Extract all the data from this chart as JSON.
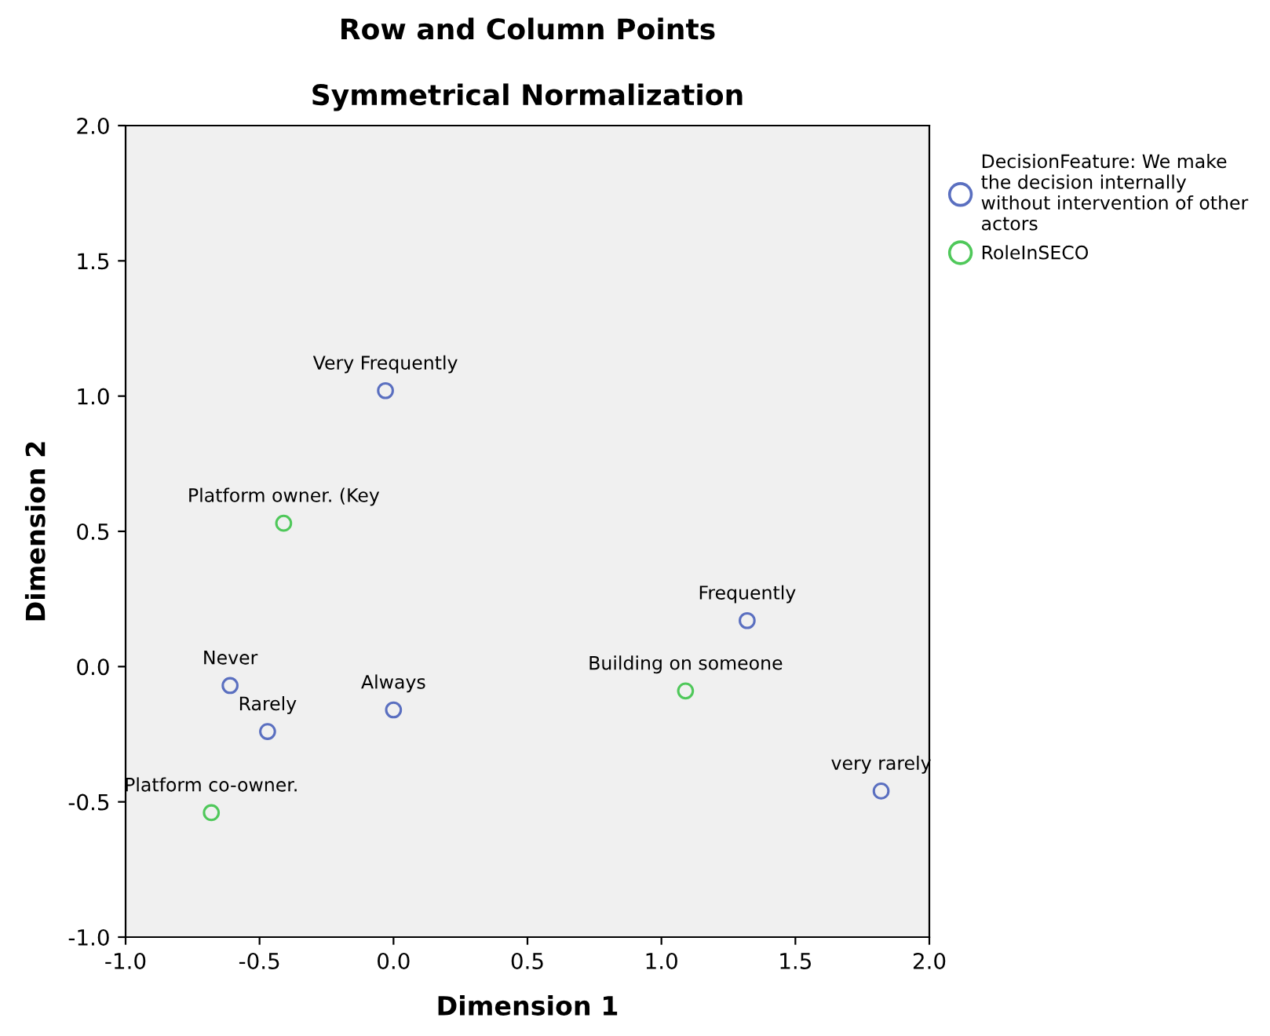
{
  "chart_data": {
    "type": "scatter",
    "title": "Row and Column Points",
    "subtitle": "Symmetrical Normalization",
    "xlabel": "Dimension 1",
    "ylabel": "Dimension 2",
    "series": [
      {
        "name": "DecisionFeature: We make\nthe decision internally\nwithout intervention of other\nactors",
        "color": "#5a6fc0",
        "x": [
          -0.03,
          1.32,
          -0.61,
          0.0,
          -0.47,
          1.82
        ],
        "values": [
          1.02,
          0.17,
          -0.07,
          -0.16,
          -0.24,
          -0.46
        ]
      },
      {
        "name": "RoleInSECO",
        "color": "#4fc85a",
        "x": [
          -0.41,
          1.09,
          -0.68
        ],
        "values": [
          0.53,
          -0.09,
          -0.54
        ]
      }
    ],
    "annotations": [
      {
        "text": "Very Frequently",
        "x": -0.03,
        "y": 1.02
      },
      {
        "text": "Frequently",
        "x": 1.32,
        "y": 0.17
      },
      {
        "text": "Never",
        "x": -0.61,
        "y": -0.07
      },
      {
        "text": "Always",
        "x": 0.0,
        "y": -0.16
      },
      {
        "text": "Rarely",
        "x": -0.47,
        "y": -0.24
      },
      {
        "text": "very rarely",
        "x": 1.82,
        "y": -0.46
      },
      {
        "text": "Platform owner. (Key",
        "x": -0.41,
        "y": 0.53
      },
      {
        "text": "Building on someone",
        "x": 1.09,
        "y": -0.09
      },
      {
        "text": "Platform co-owner.",
        "x": -0.68,
        "y": -0.54
      }
    ],
    "xlim": [
      -1.0,
      2.0
    ],
    "xticks": [
      {
        "value": -1.0,
        "label": "-1.0"
      },
      {
        "value": -0.5,
        "label": "-0.5"
      },
      {
        "value": 0.0,
        "label": "0.0"
      },
      {
        "value": 0.5,
        "label": "0.5"
      },
      {
        "value": 1.0,
        "label": "1.0"
      },
      {
        "value": 1.5,
        "label": "1.5"
      },
      {
        "value": 2.0,
        "label": "2.0"
      }
    ],
    "ylim": [
      -1.0,
      2.0
    ],
    "yticks": [
      {
        "value": -1.0,
        "label": "-1.0"
      },
      {
        "value": -0.5,
        "label": "-0.5"
      },
      {
        "value": 0.0,
        "label": "0.0"
      },
      {
        "value": 0.5,
        "label": "0.5"
      },
      {
        "value": 1.0,
        "label": "1.0"
      },
      {
        "value": 1.5,
        "label": "1.5"
      },
      {
        "value": 2.0,
        "label": "2.0"
      }
    ],
    "grid": false,
    "legend": "top right",
    "marker": "circle"
  }
}
